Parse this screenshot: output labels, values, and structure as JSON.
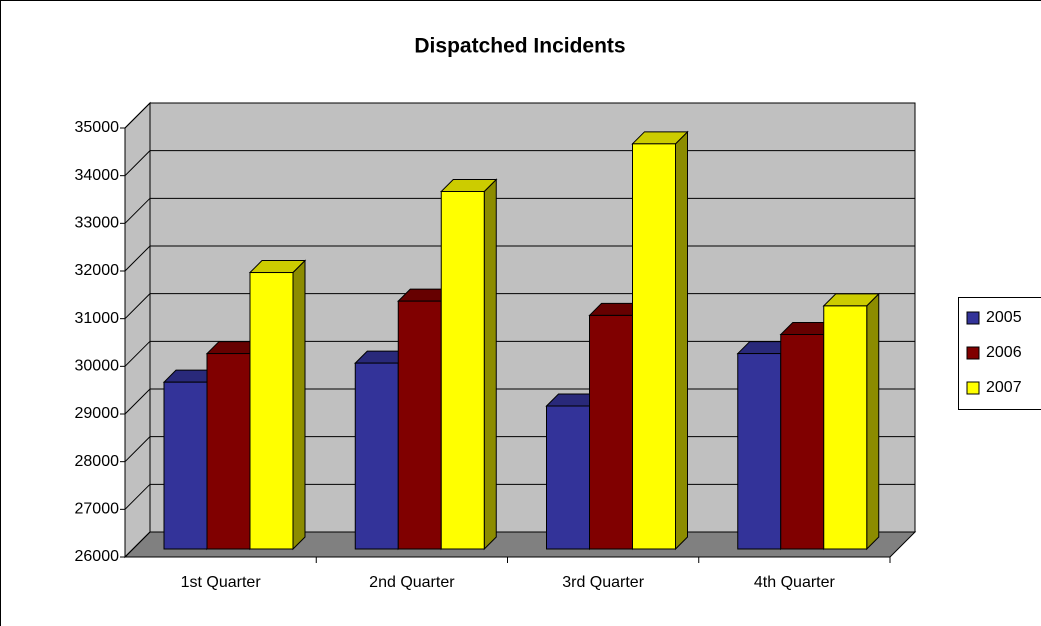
{
  "chart_data": {
    "type": "bar3d",
    "title": "Dispatched Incidents",
    "categories": [
      "1st Quarter",
      "2nd Quarter",
      "3rd Quarter",
      "4th Quarter"
    ],
    "series": [
      {
        "name": "2005",
        "color": "#333399",
        "values": [
          29500,
          29900,
          29000,
          30100
        ]
      },
      {
        "name": "2006",
        "color": "#800000",
        "values": [
          30100,
          31200,
          30900,
          30500
        ]
      },
      {
        "name": "2007",
        "color": "#ffff00",
        "values": [
          31800,
          33500,
          34500,
          31100
        ]
      }
    ],
    "ylim": [
      26000,
      35000
    ],
    "yticks": [
      26000,
      27000,
      28000,
      29000,
      30000,
      31000,
      32000,
      33000,
      34000,
      35000
    ],
    "grid": true,
    "legend": "right"
  }
}
